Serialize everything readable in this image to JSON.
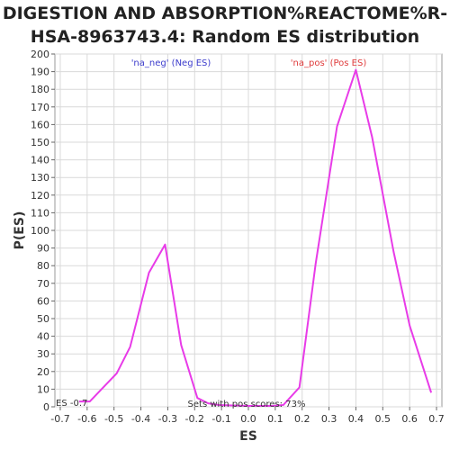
{
  "chart_data": {
    "type": "line",
    "title_line1": "DIGESTION AND ABSORPTION%REACTOME%R-",
    "title_line2": "HSA-8963743.4: Random ES distribution",
    "xlabel": "ES",
    "ylabel": "P(ES)",
    "xlim": [
      -0.72,
      0.72
    ],
    "ylim": [
      0,
      200
    ],
    "xticks": [
      -0.7,
      -0.6,
      -0.5,
      -0.4,
      -0.3,
      -0.2,
      -0.1,
      0.0,
      0.1,
      0.2,
      0.3,
      0.4,
      0.5,
      0.6,
      0.7
    ],
    "xtick_labels": [
      "-0.7",
      "-0.6",
      "-0.5",
      "-0.4",
      "-0.3",
      "-0.2",
      "-0.1",
      "0.0",
      "0.1",
      "0.2",
      "0.3",
      "0.4",
      "0.5",
      "0.6",
      "0.7"
    ],
    "yticks": [
      0,
      10,
      20,
      30,
      40,
      50,
      60,
      70,
      80,
      90,
      100,
      110,
      120,
      130,
      140,
      150,
      160,
      170,
      180,
      190,
      200
    ],
    "grid": true,
    "line_color": "#e83be8",
    "series": [
      {
        "x": [
          -0.63,
          -0.59,
          -0.49,
          -0.44,
          -0.37,
          -0.31,
          -0.25,
          -0.19,
          -0.15,
          -0.11,
          0.0,
          0.09,
          0.13,
          0.19,
          0.25,
          0.33,
          0.4,
          0.46,
          0.54,
          0.6,
          0.68
        ],
        "values": [
          3,
          3,
          19,
          34,
          76,
          92,
          35,
          5,
          2,
          1,
          0.5,
          0.5,
          1,
          11,
          81,
          159,
          191,
          153,
          88,
          46,
          8
        ]
      }
    ],
    "legend": [
      {
        "label": "'na_neg' (Neg ES)",
        "color": "#3c3ccc"
      },
      {
        "label": "'na_pos' (Pos ES)",
        "color": "#e03c3c"
      }
    ],
    "annotations": {
      "es_marker": "ES -0.7",
      "pos_scores": "Sets with pos scores: 73%"
    }
  }
}
